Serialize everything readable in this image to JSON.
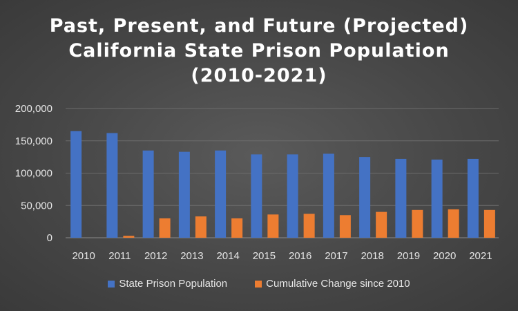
{
  "chart_data": {
    "type": "bar",
    "title_lines": [
      "Past, Present, and Future (Projected)",
      "California State Prison Population",
      "(2010-2021)"
    ],
    "categories": [
      "2010",
      "2011",
      "2012",
      "2013",
      "2014",
      "2015",
      "2016",
      "2017",
      "2018",
      "2019",
      "2020",
      "2021"
    ],
    "series": [
      {
        "name": "State Prison Population",
        "color": "#4472c4",
        "values": [
          165000,
          162000,
          135000,
          133000,
          135000,
          129000,
          129000,
          130000,
          125000,
          122000,
          121000,
          122000
        ]
      },
      {
        "name": "Cumulative Change since 2010",
        "color": "#ed7d31",
        "values": [
          0,
          3000,
          30000,
          33000,
          30000,
          36000,
          37000,
          35000,
          40000,
          43000,
          44000,
          43000
        ]
      }
    ],
    "y_ticks": [
      "0",
      "50,000",
      "100,000",
      "150,000",
      "200,000"
    ],
    "ylim": [
      0,
      200000
    ],
    "grid": true,
    "legend_position": "bottom"
  }
}
